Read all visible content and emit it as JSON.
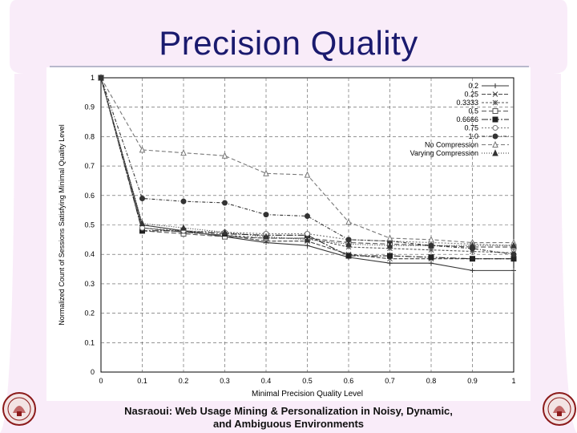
{
  "slide": {
    "title": "Precision Quality",
    "footer_line1": "Nasraoui: Web Usage Mining & Personalization in Noisy, Dynamic,",
    "footer_line2": "and Ambiguous Environments",
    "accent_color": "#f2d8f2",
    "title_color": "#1a1a6e",
    "seal_icon": "university-seal-icon"
  },
  "chart_data": {
    "type": "line",
    "title": "",
    "xlabel": "Minimal Precision Quality Level",
    "ylabel": "Normalized Count of Sessions Satisfying Minimal Quality Level",
    "x": [
      0,
      0.1,
      0.2,
      0.3,
      0.4,
      0.5,
      0.6,
      0.7,
      0.8,
      0.9,
      1
    ],
    "xticks": [
      "0",
      "0.1",
      "0.2",
      "0.3",
      "0.4",
      "0.5",
      "0.6",
      "0.7",
      "0.8",
      "0.9",
      "1"
    ],
    "yticks": [
      "0",
      "0.1",
      "0.2",
      "0.3",
      "0.4",
      "0.5",
      "0.6",
      "0.7",
      "0.8",
      "0.9",
      "1"
    ],
    "xlim": [
      0,
      1
    ],
    "ylim": [
      0,
      1
    ],
    "grid": true,
    "legend_position": "top-right",
    "series": [
      {
        "name": "0.2",
        "values": [
          1,
          0.5,
          0.48,
          0.46,
          0.44,
          0.43,
          0.39,
          0.37,
          0.37,
          0.345,
          0.345
        ],
        "marker": "plus",
        "dash": "none",
        "color": "#333333"
      },
      {
        "name": "0.25",
        "values": [
          1,
          0.49,
          0.475,
          0.465,
          0.445,
          0.445,
          0.4,
          0.385,
          0.385,
          0.385,
          0.385
        ],
        "marker": "x",
        "dash": "5,2",
        "color": "#444444"
      },
      {
        "name": "0.3333",
        "values": [
          1,
          0.49,
          0.475,
          0.465,
          0.455,
          0.455,
          0.425,
          0.42,
          0.415,
          0.41,
          0.405
        ],
        "marker": "star",
        "dash": "3,2",
        "color": "#555555"
      },
      {
        "name": "0.5",
        "values": [
          1,
          0.48,
          0.47,
          0.46,
          0.455,
          0.455,
          0.44,
          0.435,
          0.43,
          0.425,
          0.425
        ],
        "marker": "square-open",
        "dash": "6,3",
        "color": "#555555"
      },
      {
        "name": "0.6666",
        "values": [
          1,
          0.48,
          0.48,
          0.47,
          0.465,
          0.465,
          0.395,
          0.395,
          0.39,
          0.385,
          0.385
        ],
        "marker": "square-filled",
        "dash": "8,2,2,2",
        "color": "#222222"
      },
      {
        "name": "0.75",
        "values": [
          1,
          0.49,
          0.48,
          0.475,
          0.47,
          0.47,
          0.45,
          0.445,
          0.44,
          0.435,
          0.43
        ],
        "marker": "circle-open",
        "dash": "2,2",
        "color": "#777777"
      },
      {
        "name": "1.0",
        "values": [
          1,
          0.59,
          0.58,
          0.575,
          0.535,
          0.53,
          0.45,
          0.445,
          0.43,
          0.42,
          0.4
        ],
        "marker": "circle-filled",
        "dash": "4,2,1,2",
        "color": "#333333"
      },
      {
        "name": "No Compression",
        "values": [
          1,
          0.755,
          0.745,
          0.735,
          0.675,
          0.67,
          0.51,
          0.455,
          0.45,
          0.44,
          0.44
        ],
        "marker": "triangle-open",
        "dash": "5,3",
        "color": "#777777"
      },
      {
        "name": "Varying Compression",
        "values": [
          1,
          0.505,
          0.49,
          0.475,
          0.46,
          0.45,
          0.435,
          0.43,
          0.43,
          0.43,
          0.43
        ],
        "marker": "triangle-filled",
        "dash": "1,2",
        "color": "#333333"
      }
    ]
  }
}
